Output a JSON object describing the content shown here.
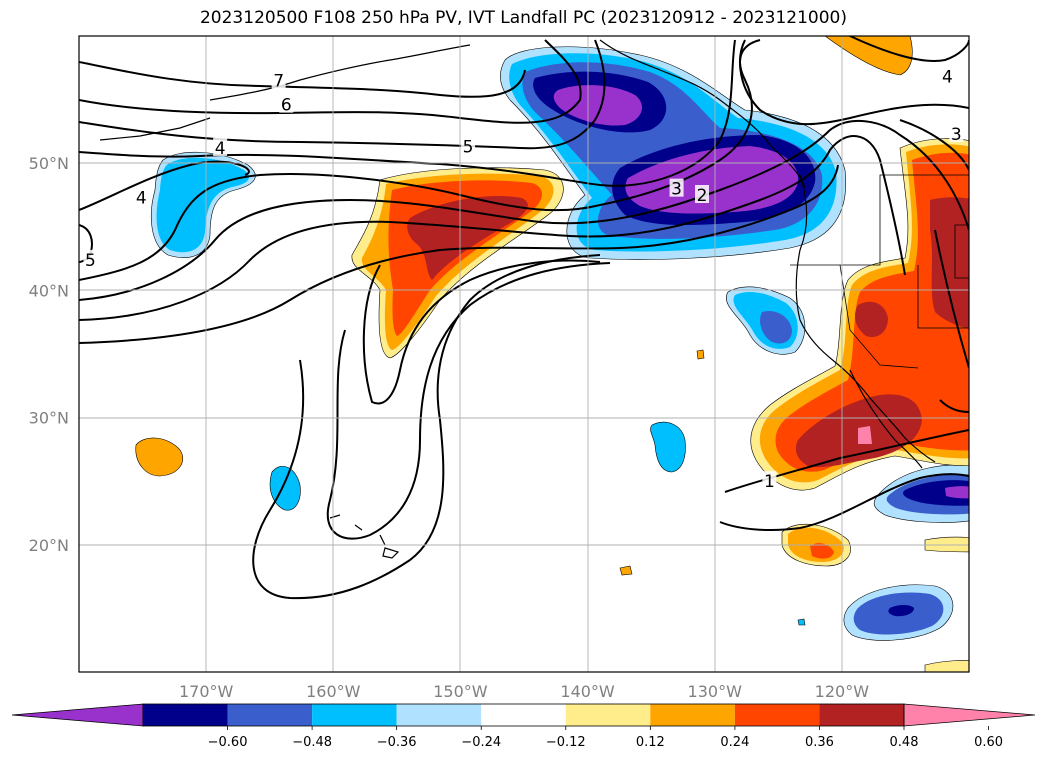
{
  "title": "2023120500 F108 250 hPa PV, IVT Landfall PC (2023120912 - 2023121000)",
  "map": {
    "lon_range": [
      -180,
      -110
    ],
    "lat_range": [
      10,
      60
    ],
    "lon_ticks": [
      {
        "value": -170,
        "label": "170°W"
      },
      {
        "value": -160,
        "label": "160°W"
      },
      {
        "value": -150,
        "label": "150°W"
      },
      {
        "value": -140,
        "label": "140°W"
      },
      {
        "value": -130,
        "label": "130°W"
      },
      {
        "value": -120,
        "label": "120°W"
      }
    ],
    "lat_ticks": [
      {
        "value": 20,
        "label": "20°N"
      },
      {
        "value": 30,
        "label": "30°N"
      },
      {
        "value": 40,
        "label": "40°N"
      },
      {
        "value": 50,
        "label": "50°N"
      }
    ],
    "grid": true,
    "coastlines": true
  },
  "pv_contour_labels": [
    {
      "text": "7",
      "lon": -164.3,
      "lat": 56.5
    },
    {
      "text": "6",
      "lon": -163.7,
      "lat": 54.6
    },
    {
      "text": "5",
      "lon": -149.4,
      "lat": 51.3
    },
    {
      "text": "4",
      "lon": -168.9,
      "lat": 51.2
    },
    {
      "text": "4",
      "lon": -175.1,
      "lat": 47.3
    },
    {
      "text": "5",
      "lon": -179.1,
      "lat": 42.4
    },
    {
      "text": "3",
      "lon": -133.0,
      "lat": 48.0
    },
    {
      "text": "2",
      "lon": -131.0,
      "lat": 47.5
    },
    {
      "text": "1",
      "lon": -125.7,
      "lat": 25.0
    },
    {
      "text": "4",
      "lon": -111.7,
      "lat": 56.8
    },
    {
      "text": "3",
      "lon": -111.0,
      "lat": 52.3
    }
  ],
  "colorbar": {
    "ticks": [
      "−0.60",
      "−0.48",
      "−0.36",
      "−0.24",
      "−0.12",
      "0.12",
      "0.24",
      "0.36",
      "0.48",
      "0.60"
    ],
    "colors": [
      "#9932cc",
      "#00008b",
      "#3a5fcd",
      "#00bfff",
      "#b0e2ff",
      "#ffffff",
      "#ffec8b",
      "#ffa500",
      "#ff4500",
      "#b22222",
      "#ff82ab"
    ]
  },
  "ivt_pc_field": [
    {
      "lon": -138.5,
      "lat": 53.5,
      "value": -0.62
    },
    {
      "lon": -127.0,
      "lat": 48.0,
      "value": -0.63
    },
    {
      "lon": -115.0,
      "lat": 24.0,
      "value": -0.55
    },
    {
      "lon": -114.5,
      "lat": 14.5,
      "value": -0.5
    },
    {
      "lon": -125.5,
      "lat": 37.5,
      "value": -0.4
    },
    {
      "lon": -168.5,
      "lat": 47.5,
      "value": -0.3
    },
    {
      "lon": -164.0,
      "lat": 23.5,
      "value": -0.3
    },
    {
      "lon": -133.5,
      "lat": 28.0,
      "value": -0.3
    },
    {
      "lon": -149.0,
      "lat": 44.5,
      "value": 0.52
    },
    {
      "lon": -123.0,
      "lat": 29.0,
      "value": 0.5
    },
    {
      "lon": -117.0,
      "lat": 29.0,
      "value": 0.62
    },
    {
      "lon": -113.5,
      "lat": 43.0,
      "value": 0.52
    },
    {
      "lon": -118.0,
      "lat": 38.0,
      "value": 0.48
    },
    {
      "lon": -123.0,
      "lat": 19.5,
      "value": 0.35
    },
    {
      "lon": -170.5,
      "lat": 27.5,
      "value": 0.28
    },
    {
      "lon": -116.5,
      "lat": 58.5,
      "value": 0.26
    }
  ]
}
